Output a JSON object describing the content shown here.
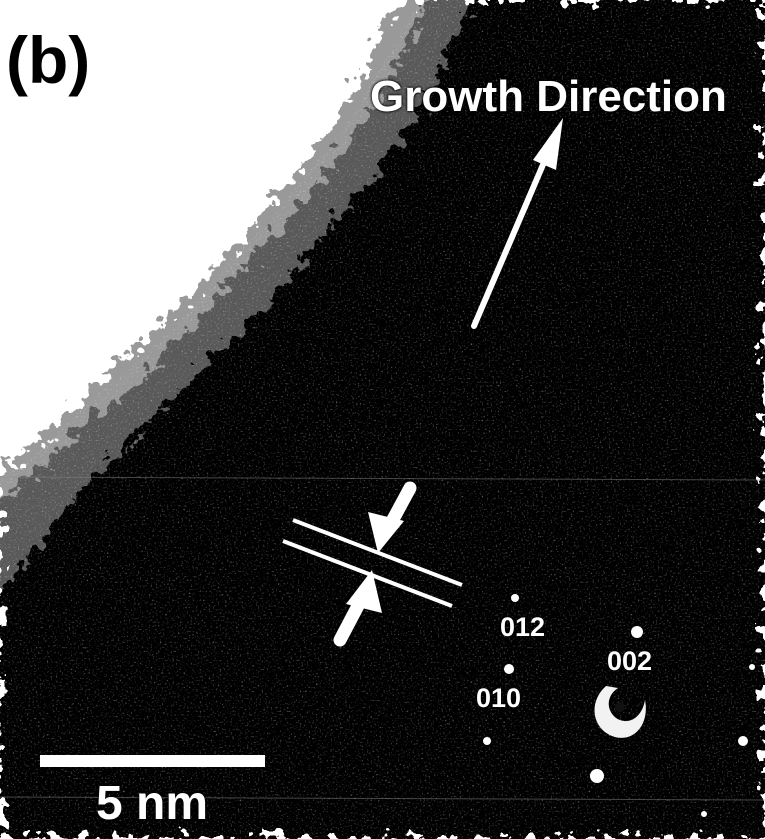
{
  "figure": {
    "panel_label": "(b)",
    "arrow_label": "Growth Direction",
    "scale_bar_label": "5 nm",
    "diffraction_spots": {
      "spot_a": "012",
      "spot_b": "002",
      "spot_c": "010"
    }
  },
  "colors": {
    "background": "#ffffff",
    "specimen": "#060606",
    "annotation": "#ffffff"
  }
}
